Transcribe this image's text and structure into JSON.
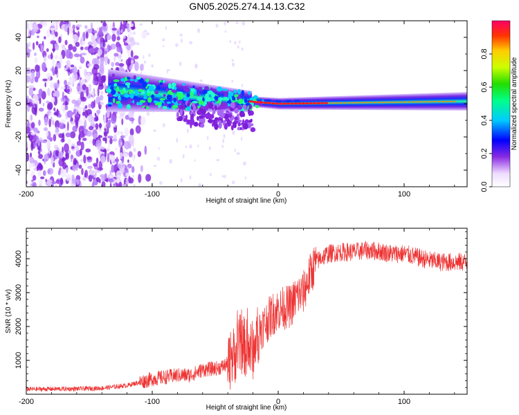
{
  "title": "GN05.2025.274.14.13.C32",
  "colors": {
    "snr_line": "#ee3333",
    "background": "#ffffff",
    "axis": "#000000"
  },
  "chart_data": [
    {
      "type": "heatmap",
      "name": "spectrogram",
      "xlabel": "Height of straight line (km)",
      "ylabel": "Frequency (Hz)",
      "xlim": [
        -200,
        150
      ],
      "ylim": [
        -50,
        50
      ],
      "xticks": [
        -200,
        -100,
        0,
        100
      ],
      "xtick_labels": [
        "-200",
        "-100",
        "0",
        "100"
      ],
      "yticks": [
        -40,
        -20,
        0,
        20,
        40
      ],
      "ytick_labels": [
        "-40",
        "-20",
        "0",
        "20",
        "40"
      ],
      "colorbar": {
        "label": "Normalized spectral amplitude",
        "range": [
          0,
          1
        ],
        "ticks": [
          0.0,
          0.2,
          0.4,
          0.6,
          0.8
        ],
        "tick_labels": [
          "0.0",
          "0.2",
          "0.4",
          "0.6",
          "0.8"
        ]
      },
      "features": {
        "noise_region_x": [
          -200,
          -115
        ],
        "signal_onset_x": -135,
        "signal_center_hz_at_onset": 8,
        "signal_center_hz_at_zero_km": 0,
        "strong_signal_from_x": -22
      }
    },
    {
      "type": "line",
      "name": "snr",
      "xlabel": "Height of straight line (km)",
      "ylabel": "SNR (10 * v/v)",
      "xlim": [
        -200,
        150
      ],
      "ylim": [
        0,
        4900
      ],
      "xticks": [
        -200,
        -100,
        0,
        100
      ],
      "xtick_labels": [
        "-200",
        "-100",
        "0",
        "100"
      ],
      "yticks": [
        1000,
        2000,
        3000,
        4000
      ],
      "ytick_labels": [
        "1000",
        "2000",
        "3000",
        "4000"
      ],
      "series": [
        {
          "name": "SNR",
          "x": [
            -200,
            -160,
            -140,
            -120,
            -100,
            -80,
            -70,
            -60,
            -50,
            -45,
            -40,
            -35,
            -30,
            -25,
            -20,
            -15,
            -10,
            -5,
            0,
            5,
            10,
            15,
            20,
            25,
            30,
            35,
            40,
            50,
            60,
            70,
            80,
            90,
            100,
            110,
            120,
            130,
            140,
            150
          ],
          "y": [
            150,
            160,
            180,
            260,
            450,
            560,
            560,
            720,
            760,
            800,
            900,
            1150,
            1500,
            1350,
            1300,
            1900,
            2100,
            2350,
            2500,
            2550,
            2600,
            2900,
            3000,
            3500,
            3900,
            4050,
            4150,
            4200,
            4200,
            4250,
            4220,
            4150,
            4150,
            4050,
            3950,
            3900,
            3900,
            3900
          ]
        }
      ]
    }
  ]
}
